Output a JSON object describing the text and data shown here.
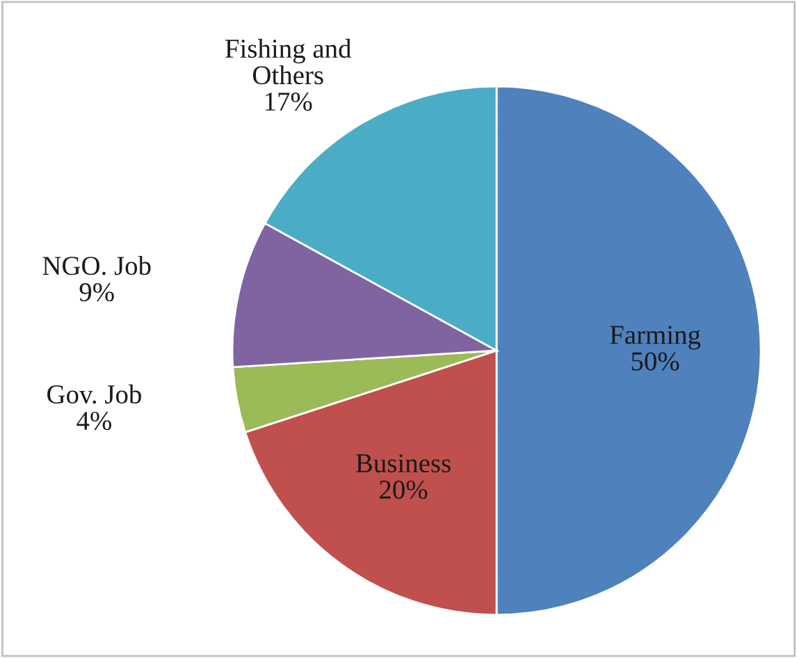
{
  "chart_data": {
    "type": "pie",
    "categories": [
      "Farming",
      "Business",
      "Gov. Job",
      "NGO. Job",
      "Fishing and\nOthers"
    ],
    "values": [
      50,
      20,
      4,
      9,
      17
    ],
    "colors": [
      "#4f81bd",
      "#c0504d",
      "#9bbb59",
      "#8064a2",
      "#4bacc6"
    ],
    "value_labels": [
      "50%",
      "20%",
      "4%",
      "9%",
      "17%"
    ],
    "legend": false
  }
}
